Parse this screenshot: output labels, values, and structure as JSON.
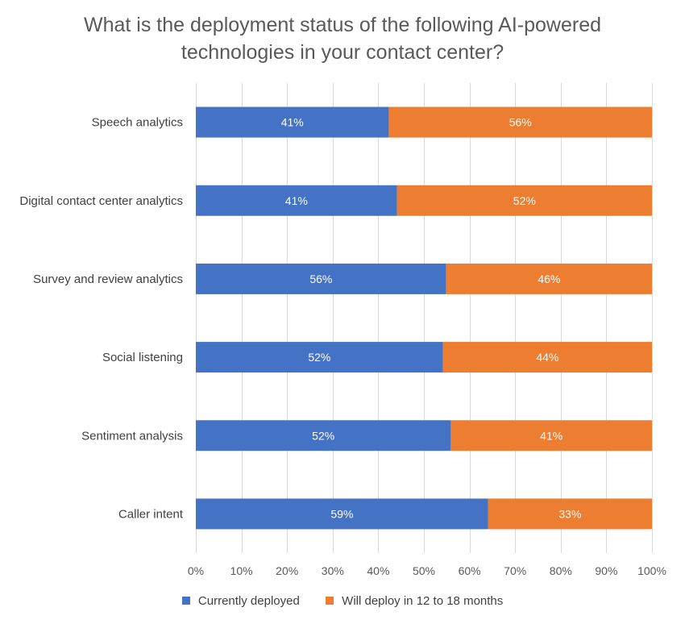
{
  "chart_data": {
    "type": "bar",
    "orientation": "horizontal",
    "stacked": true,
    "title_lines": [
      "What is the deployment status of the following AI-powered",
      "technologies in your contact center?"
    ],
    "categories": [
      "Speech analytics",
      "Digital contact center analytics",
      "Survey and review analytics",
      "Social listening",
      "Sentiment analysis",
      "Caller intent"
    ],
    "series": [
      {
        "name": "Currently deployed",
        "color": "#4472C4",
        "values": [
          41,
          41,
          56,
          52,
          52,
          59
        ],
        "labels": [
          "41%",
          "41%",
          "56%",
          "52%",
          "52%",
          "59%"
        ],
        "share": [
          42.3,
          44.1,
          54.9,
          54.2,
          55.9,
          64.1
        ]
      },
      {
        "name": "Will deploy in 12 to 18 months",
        "color": "#ED7D31",
        "values": [
          56,
          52,
          46,
          44,
          41,
          33
        ],
        "labels": [
          "56%",
          "52%",
          "46%",
          "44%",
          "41%",
          "33%"
        ],
        "share": [
          57.7,
          55.9,
          45.1,
          45.8,
          44.1,
          35.9
        ]
      }
    ],
    "x_ticks": [
      "0%",
      "10%",
      "20%",
      "30%",
      "40%",
      "50%",
      "60%",
      "70%",
      "80%",
      "90%",
      "100%"
    ],
    "xlim": [
      0,
      100
    ],
    "grid": true,
    "legend_position": "bottom"
  }
}
